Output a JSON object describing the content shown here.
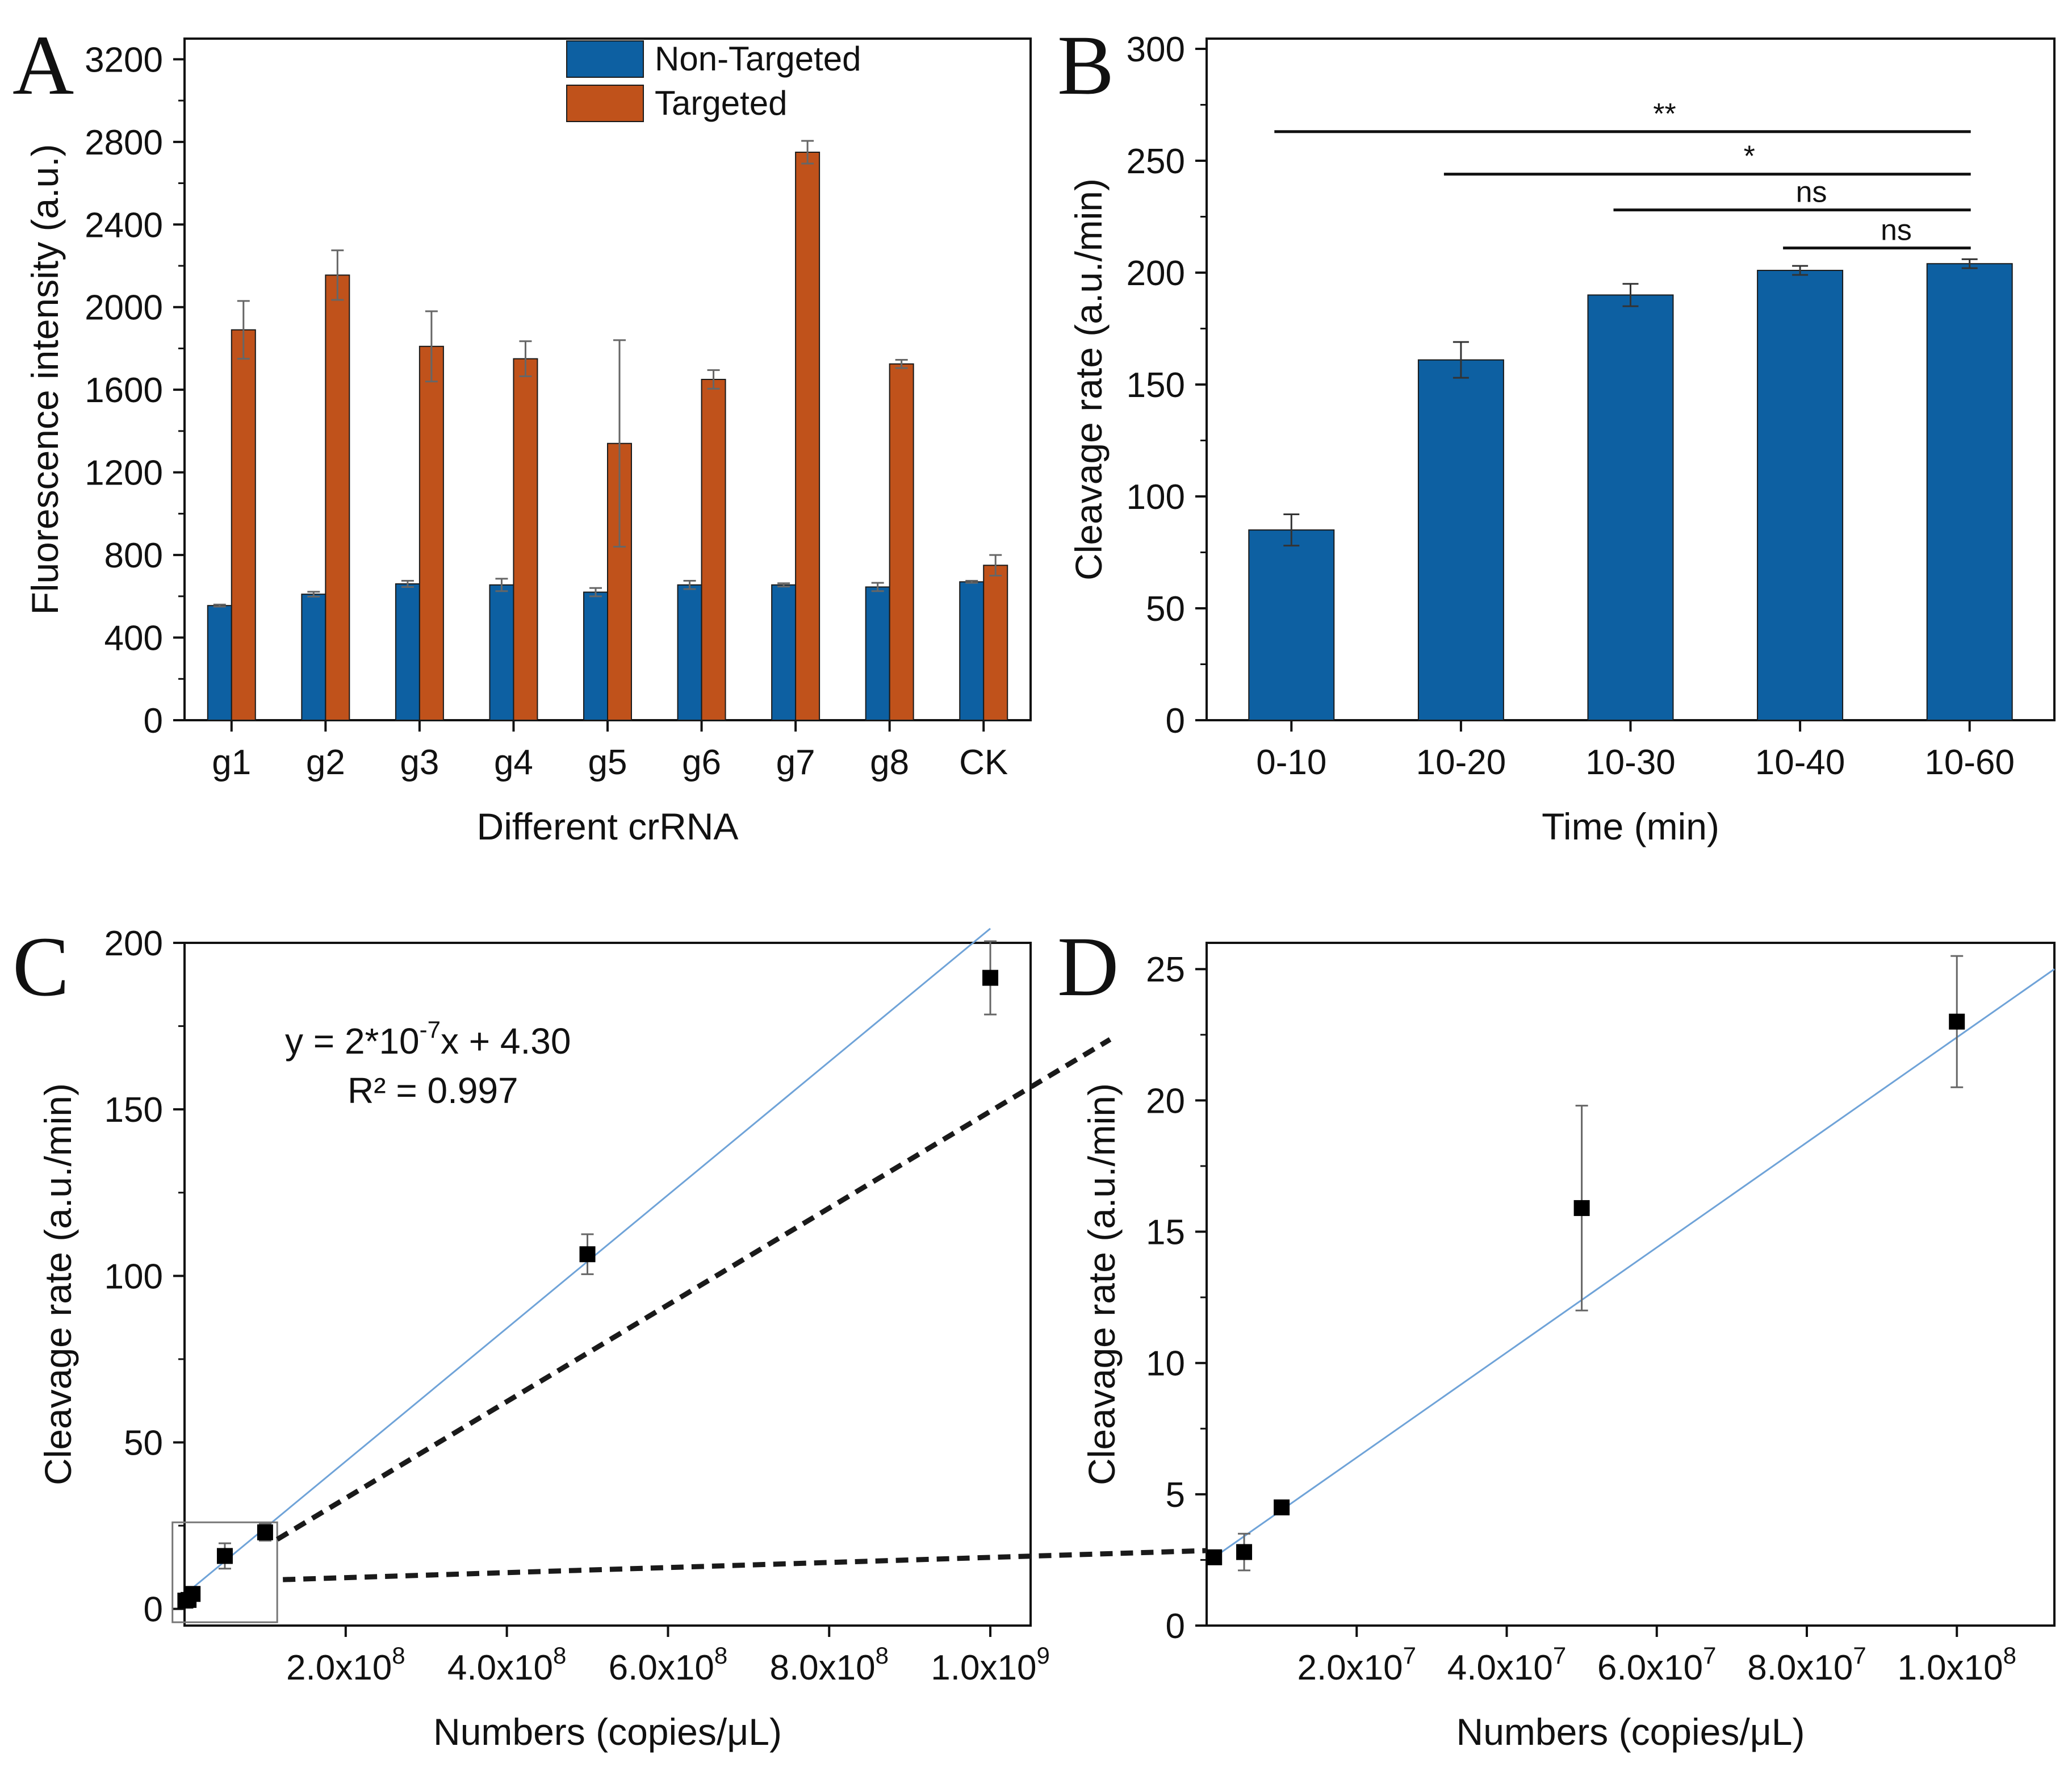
{
  "chart_data": [
    {
      "panel": "A",
      "type": "bar",
      "xlabel": "Different crRNA",
      "ylabel": "Fluorescence intensity (a.u.)",
      "ylim": [
        0,
        3300
      ],
      "yticks": [
        0,
        400,
        800,
        1200,
        1600,
        2000,
        2400,
        2800,
        3200
      ],
      "categories": [
        "g1",
        "g2",
        "g3",
        "g4",
        "g5",
        "g6",
        "g7",
        "g8",
        "CK"
      ],
      "legend_position": "top-center",
      "series": [
        {
          "name": "Non-Targeted",
          "color": "#0d60a2",
          "values": [
            555,
            610,
            660,
            655,
            620,
            655,
            655,
            645,
            670
          ],
          "errors": [
            5,
            12,
            15,
            30,
            20,
            20,
            8,
            20,
            5
          ]
        },
        {
          "name": "Targeted",
          "color": "#c0521b",
          "values": [
            1890,
            2155,
            1810,
            1750,
            1340,
            1650,
            2750,
            1725,
            750
          ],
          "errors": [
            140,
            120,
            170,
            85,
            500,
            45,
            55,
            20,
            50
          ]
        }
      ]
    },
    {
      "panel": "B",
      "type": "bar",
      "xlabel": "Time (min)",
      "ylabel": "Cleavage rate (a.u./min)",
      "ylim": [
        0,
        300
      ],
      "yticks": [
        0,
        50,
        100,
        150,
        200,
        250,
        300
      ],
      "categories": [
        "0-10",
        "10-20",
        "10-30",
        "10-40",
        "10-60"
      ],
      "series": [
        {
          "name": "Cleavage rate",
          "color": "#0d60a2",
          "values": [
            85,
            161,
            190,
            201,
            204
          ],
          "errors": [
            7,
            8,
            5,
            2,
            2
          ]
        }
      ],
      "annotations": [
        {
          "label": "**",
          "from": "0-10",
          "to": "10-60",
          "y": 263
        },
        {
          "label": "*",
          "from": "10-20",
          "to": "10-60",
          "y": 244
        },
        {
          "label": "ns",
          "from": "10-30",
          "to": "10-60",
          "y": 228
        },
        {
          "label": "ns",
          "from": "10-40",
          "to": "10-60",
          "y": 211
        }
      ]
    },
    {
      "panel": "C",
      "type": "scatter",
      "xlabel": "Numbers (copies/μL)",
      "ylabel": "Cleavage rate (a.u./min)",
      "xlim": [
        0,
        1050000000.0
      ],
      "ylim": [
        -5,
        200
      ],
      "yticks": [
        0,
        50,
        100,
        150,
        200
      ],
      "xticks": [
        {
          "value": 200000000.0,
          "mant": "2.0x10",
          "exp": "8"
        },
        {
          "value": 400000000.0,
          "mant": "4.0x10",
          "exp": "8"
        },
        {
          "value": 600000000.0,
          "mant": "6.0x10",
          "exp": "8"
        },
        {
          "value": 800000000.0,
          "mant": "8.0x10",
          "exp": "8"
        },
        {
          "value": 1000000000.0,
          "mant": "1.0x10",
          "exp": "9"
        }
      ],
      "points": [
        {
          "x": 1000000.0,
          "y": 2.5,
          "err": 0.5
        },
        {
          "x": 5000000.0,
          "y": 2.7,
          "err": 0.6
        },
        {
          "x": 10000000.0,
          "y": 4.5,
          "err": 0.4
        },
        {
          "x": 50000000.0,
          "y": 15.9,
          "err": 3.8
        },
        {
          "x": 100000000.0,
          "y": 23.0,
          "err": 2.5
        },
        {
          "x": 500000000.0,
          "y": 106.5,
          "err": 6
        },
        {
          "x": 1000000000.0,
          "y": 189.5,
          "err": 11
        }
      ],
      "fit": {
        "slope": 2e-07,
        "intercept": 4.3,
        "x_range": [
          0,
          1000000000.0
        ]
      },
      "equation": {
        "prefix": "y = 2*10",
        "exp": "-7",
        "suffix": "x + 4.30",
        "r2": "R² = 0.997"
      },
      "inset_box": {
        "x_range": [
          -15000000.0,
          115000000.0
        ],
        "y_range": [
          -4,
          26
        ]
      }
    },
    {
      "panel": "D",
      "type": "scatter",
      "xlabel": "Numbers (copies/μL)",
      "ylabel": "Cleavage rate (a.u./min)",
      "xlim": [
        0,
        113000000.0
      ],
      "ylim": [
        0,
        26
      ],
      "yticks": [
        0,
        5,
        10,
        15,
        20,
        25
      ],
      "xticks": [
        {
          "value": 20000000.0,
          "mant": "2.0x10",
          "exp": "7"
        },
        {
          "value": 40000000.0,
          "mant": "4.0x10",
          "exp": "7"
        },
        {
          "value": 60000000.0,
          "mant": "6.0x10",
          "exp": "7"
        },
        {
          "value": 80000000.0,
          "mant": "8.0x10",
          "exp": "7"
        },
        {
          "value": 100000000.0,
          "mant": "1.0x10",
          "exp": "8"
        }
      ],
      "points": [
        {
          "x": 1000000.0,
          "y": 2.6,
          "err": 0.1
        },
        {
          "x": 5000000.0,
          "y": 2.8,
          "err": 0.7
        },
        {
          "x": 10000000.0,
          "y": 4.5,
          "err": 0.1
        },
        {
          "x": 50000000.0,
          "y": 15.9,
          "err": 3.9
        },
        {
          "x": 100000000.0,
          "y": 23.0,
          "err": 2.5
        }
      ],
      "fit": {
        "slope": 2e-07,
        "intercept": 2.4,
        "x_range": [
          0,
          113000000.0
        ]
      }
    }
  ],
  "panel_labels": {
    "a": "A",
    "b": "B",
    "c": "C",
    "d": "D"
  },
  "colors": {
    "axis": "#111111",
    "fit_line": "#6fa3d8",
    "error_bar": "#666666",
    "marker": "#000000"
  }
}
